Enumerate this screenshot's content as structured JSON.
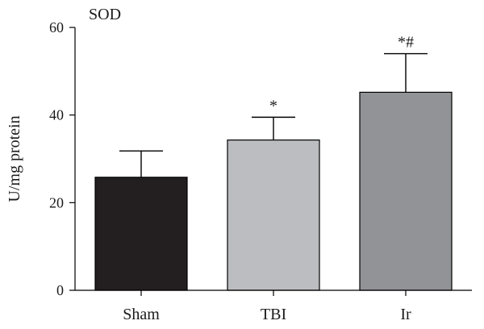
{
  "chart_data": {
    "type": "bar",
    "title": "SOD",
    "ylabel": "U/mg protein",
    "xlabel": "",
    "ylim": [
      0,
      60
    ],
    "yticks": [
      0,
      20,
      40,
      60
    ],
    "categories": [
      "Sham",
      "TBI",
      "Ir"
    ],
    "values": [
      25.8,
      34.3,
      45.2
    ],
    "errors": [
      6.0,
      5.2,
      8.8
    ],
    "annotations": [
      "",
      "*",
      "*#"
    ],
    "colors": [
      "#231f20",
      "#bcbdc0",
      "#929396"
    ],
    "grid": false,
    "legend": "none"
  }
}
